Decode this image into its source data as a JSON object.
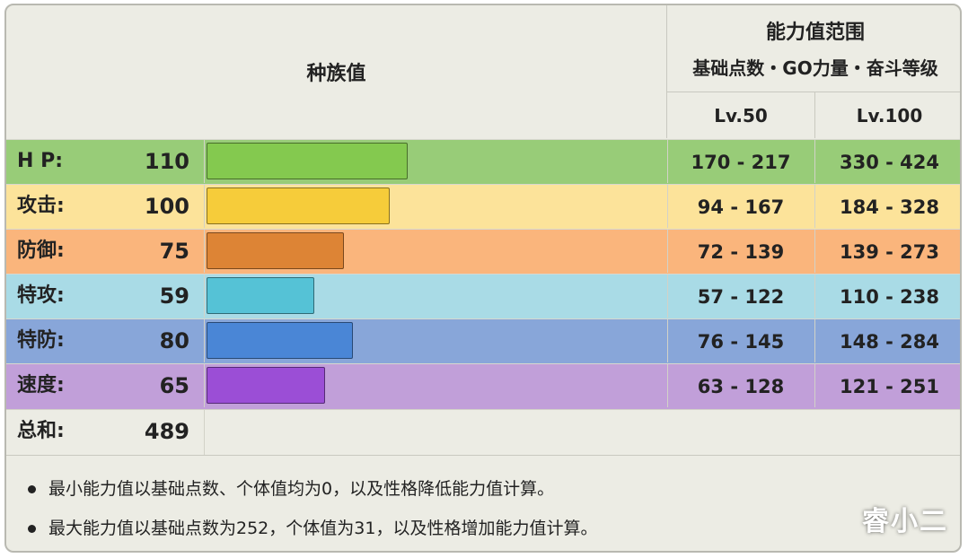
{
  "header": {
    "base_stats": "种族值",
    "range_title": "能力值范围",
    "range_subtitle": "基础点数・GO力量・奋斗等级",
    "lv50": "Lv.50",
    "lv100": "Lv.100"
  },
  "max_stat": 220,
  "stats": [
    {
      "label": "H P:",
      "value": "110",
      "num": 110,
      "lv50": "170 - 217",
      "lv100": "330 - 424",
      "row_color": "#98cc78",
      "bar_color": "#84c94f"
    },
    {
      "label": "攻击:",
      "value": "100",
      "num": 100,
      "lv50": "94 - 167",
      "lv100": "184 - 328",
      "row_color": "#fce39a",
      "bar_color": "#f6cc3a"
    },
    {
      "label": "防御:",
      "value": "75",
      "num": 75,
      "lv50": "72 - 139",
      "lv100": "139 - 273",
      "row_color": "#fab57c",
      "bar_color": "#dd8435"
    },
    {
      "label": "特攻:",
      "value": "59",
      "num": 59,
      "lv50": "57 - 122",
      "lv100": "110 - 238",
      "row_color": "#a9dbe6",
      "bar_color": "#55c2d6"
    },
    {
      "label": "特防:",
      "value": "80",
      "num": 80,
      "lv50": "76 - 145",
      "lv100": "148 - 284",
      "row_color": "#88a6d9",
      "bar_color": "#4a86d6"
    },
    {
      "label": "速度:",
      "value": "65",
      "num": 65,
      "lv50": "63 - 128",
      "lv100": "121 - 251",
      "row_color": "#c19fd9",
      "bar_color": "#9b4ed6"
    }
  ],
  "total": {
    "label": "总和:",
    "value": "489"
  },
  "notes": [
    "最小能力值以基础点数、个体值均为0，以及性格降低能力值计算。",
    "最大能力值以基础点数为252，个体值为31，以及性格增加能力值计算。"
  ],
  "watermark": "睿小二"
}
